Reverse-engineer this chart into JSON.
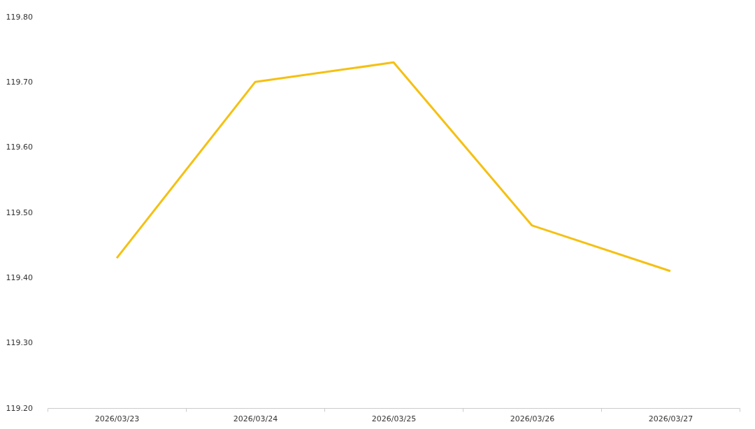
{
  "chart_data": {
    "type": "line",
    "categories": [
      "2026/03/23",
      "2026/03/24",
      "2026/03/25",
      "2026/03/26",
      "2026/03/27"
    ],
    "series": [
      {
        "color": "#f5c012",
        "values": [
          119.43,
          119.7,
          119.73,
          119.48,
          119.41
        ]
      }
    ],
    "ylim": [
      119.2,
      119.8
    ],
    "yticks": [
      {
        "value": 119.2,
        "label": "119.20"
      },
      {
        "value": 119.3,
        "label": "119.30"
      },
      {
        "value": 119.4,
        "label": "119.40"
      },
      {
        "value": 119.5,
        "label": "119.50"
      },
      {
        "value": 119.6,
        "label": "119.60"
      },
      {
        "value": 119.7,
        "label": "119.70"
      },
      {
        "value": 119.8,
        "label": "119.80"
      }
    ],
    "grid": false,
    "marker": "none",
    "line_style": "solid"
  }
}
